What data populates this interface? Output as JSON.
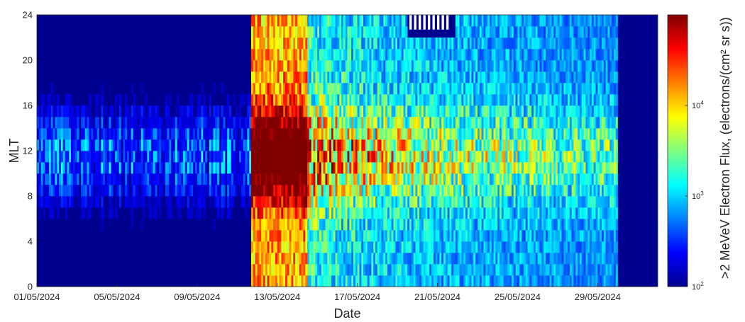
{
  "chart_data": {
    "type": "heatmap",
    "xlabel": "Date",
    "ylabel": "MLT",
    "x_ticks": [
      "01/05/2024",
      "05/05/2024",
      "09/05/2024",
      "13/05/2024",
      "17/05/2024",
      "21/05/2024",
      "25/05/2024",
      "29/05/2024"
    ],
    "x_range": [
      "01/05/2024",
      "01/06/2024"
    ],
    "y_ticks": [
      "0",
      "4",
      "8",
      "12",
      "16",
      "20",
      "24"
    ],
    "y_range": [
      0,
      24
    ],
    "colorbar": {
      "label": ">2 MeVeV Electron Flux, (electrons/(cm² sr s))",
      "scale": "log",
      "range": [
        100,
        100000
      ],
      "ticks": [
        {
          "base": "10",
          "exp": "2",
          "value": 100
        },
        {
          "base": "10",
          "exp": "3",
          "value": 1000
        },
        {
          "base": "10",
          "exp": "4",
          "value": 10000
        }
      ],
      "colormap": "jet"
    },
    "grid": false,
    "description_of_data": {
      "quiet_period": [
        "01/05/2024",
        "11/05/2024"
      ],
      "storm_onset": "11/05/2024",
      "peak_mlt_band": [
        7,
        16
      ],
      "gap_missing_data": [
        "19/05/2024",
        "21/05/2024"
      ]
    }
  }
}
